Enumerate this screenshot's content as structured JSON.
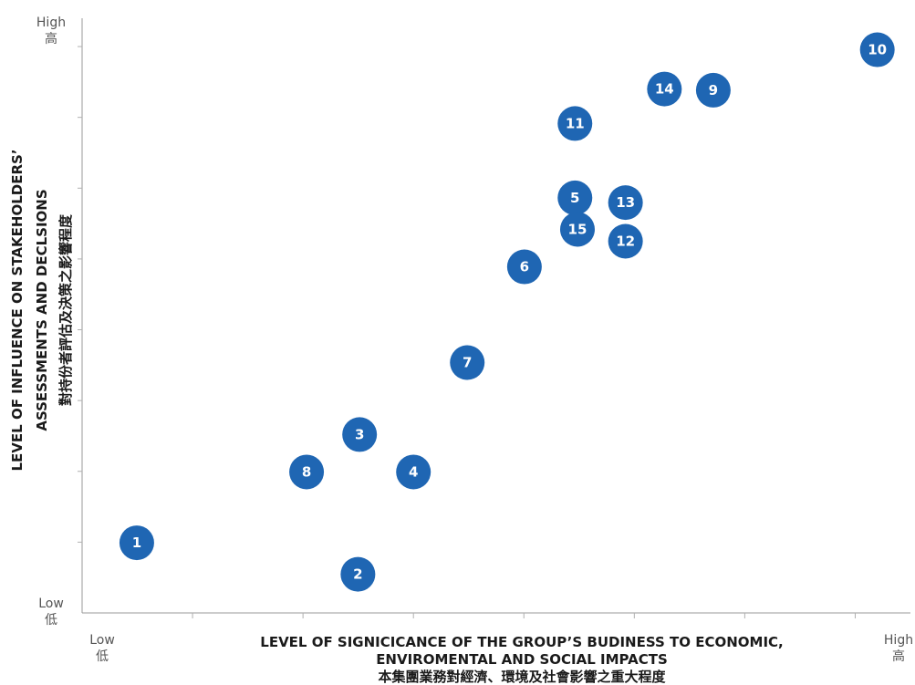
{
  "chart_data": {
    "type": "scatter",
    "title": "",
    "xlabel": [
      "LEVEL OF SIGNICICANCE OF THE GROUP’S BUDINESS TO ECONOMIC,",
      "ENVIROMENTAL AND SOCIAL IMPACTS",
      "本集團業務對經濟、環境及社會影響之重大程度"
    ],
    "ylabel": [
      "LEVEL OF INFLUENCE ON STAKEHOLDERS’",
      "ASSESSMENTS AND DECLSIONS",
      "對持份者評估及決策之影響程度"
    ],
    "x_low": [
      "Low",
      "低"
    ],
    "x_high": [
      "High",
      "高"
    ],
    "y_low": [
      "Low",
      "低"
    ],
    "y_high": [
      "High",
      "高"
    ],
    "xlim": [
      0,
      1
    ],
    "ylim": [
      0,
      1
    ],
    "x_tick_count": 7,
    "y_tick_count": 9,
    "grid": false,
    "marker_color": "#1f66b3",
    "points": [
      {
        "label": "1",
        "x": 0.066,
        "y": 0.118
      },
      {
        "label": "2",
        "x": 0.333,
        "y": 0.065
      },
      {
        "label": "3",
        "x": 0.335,
        "y": 0.3
      },
      {
        "label": "4",
        "x": 0.4,
        "y": 0.237
      },
      {
        "label": "5",
        "x": 0.595,
        "y": 0.698
      },
      {
        "label": "6",
        "x": 0.534,
        "y": 0.582
      },
      {
        "label": "7",
        "x": 0.465,
        "y": 0.421
      },
      {
        "label": "8",
        "x": 0.271,
        "y": 0.237
      },
      {
        "label": "9",
        "x": 0.762,
        "y": 0.879
      },
      {
        "label": "10",
        "x": 0.96,
        "y": 0.947
      },
      {
        "label": "11",
        "x": 0.595,
        "y": 0.823
      },
      {
        "label": "12",
        "x": 0.656,
        "y": 0.625
      },
      {
        "label": "13",
        "x": 0.656,
        "y": 0.69
      },
      {
        "label": "14",
        "x": 0.703,
        "y": 0.881
      },
      {
        "label": "15",
        "x": 0.598,
        "y": 0.645
      }
    ]
  }
}
